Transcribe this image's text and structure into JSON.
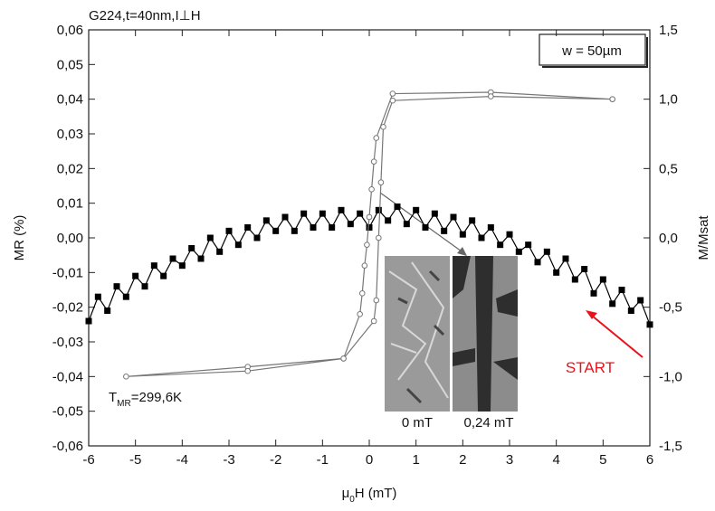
{
  "chart_data": {
    "type": "line",
    "title": "G224,t=40nm,I⊥H",
    "annotations": [
      "w = 50µm",
      "START"
    ],
    "temperature_label": {
      "main": "T",
      "sub": "MR",
      "rest": "=299,6K"
    },
    "image_labels": [
      "0 mT",
      "0,24 mT"
    ],
    "x_label": {
      "main": "μ",
      "sub": "0",
      "rest": "H (mT)"
    },
    "y_label": "MR (%)",
    "y2_label": "M/Msat",
    "xlim": [
      -6,
      6
    ],
    "xticks": [
      -6,
      -5,
      -4,
      -3,
      -2,
      -1,
      0,
      1,
      2,
      3,
      4,
      5,
      6
    ],
    "ylim": [
      -0.06,
      0.06
    ],
    "yticks": [
      {
        "value": -0.06,
        "label": "-0,06"
      },
      {
        "value": -0.05,
        "label": "-0,05"
      },
      {
        "value": -0.04,
        "label": "-0,04"
      },
      {
        "value": -0.03,
        "label": "-0,03"
      },
      {
        "value": -0.02,
        "label": "-0,02"
      },
      {
        "value": -0.01,
        "label": "-0,01"
      },
      {
        "value": 0,
        "label": "0,00"
      },
      {
        "value": 0.01,
        "label": "0,01"
      },
      {
        "value": 0.02,
        "label": "0,02"
      },
      {
        "value": 0.03,
        "label": "0,03"
      },
      {
        "value": 0.04,
        "label": "0,04"
      },
      {
        "value": 0.05,
        "label": "0,05"
      },
      {
        "value": 0.06,
        "label": "0,06"
      }
    ],
    "y2lim": [
      -1.5,
      1.5
    ],
    "y2ticks": [
      {
        "value": -1.5,
        "label": "-1,5"
      },
      {
        "value": -1,
        "label": "-1,0"
      },
      {
        "value": -0.5,
        "label": "-0,5"
      },
      {
        "value": 0,
        "label": "0,0"
      },
      {
        "value": 0.5,
        "label": "0,5"
      },
      {
        "value": 1,
        "label": "1,0"
      },
      {
        "value": 1.5,
        "label": "1,5"
      }
    ],
    "series": [
      {
        "color": "#000000",
        "marker": "square-filled",
        "x": [
          -6,
          -5.8,
          -5.6,
          -5.4,
          -5.2,
          -5,
          -4.8,
          -4.6,
          -4.4,
          -4.2,
          -4,
          -3.8,
          -3.6,
          -3.4,
          -3.2,
          -3,
          -2.8,
          -2.6,
          -2.4,
          -2.2,
          -2,
          -1.8,
          -1.6,
          -1.4,
          -1.2,
          -1,
          -0.8,
          -0.6,
          -0.4,
          -0.2,
          0,
          0.2,
          0.4,
          0.6,
          0.8,
          1,
          1.2,
          1.4,
          1.6,
          1.8,
          2,
          2.2,
          2.4,
          2.6,
          2.8,
          3,
          3.2,
          3.4,
          3.6,
          3.8,
          4,
          4.2,
          4.4,
          4.6,
          4.8,
          5,
          5.2,
          5.4,
          5.6,
          5.8,
          6
        ],
        "values": [
          -0.024,
          -0.017,
          -0.021,
          -0.014,
          -0.017,
          -0.011,
          -0.014,
          -0.008,
          -0.011,
          -0.006,
          -0.008,
          -0.003,
          -0.006,
          0,
          -0.004,
          0.002,
          -0.002,
          0.003,
          0,
          0.005,
          0.002,
          0.006,
          0.002,
          0.007,
          0.003,
          0.007,
          0.003,
          0.008,
          0.004,
          0.007,
          0.003,
          0.008,
          0.005,
          0.009,
          0.004,
          0.008,
          0.003,
          0.007,
          0.002,
          0.006,
          0.001,
          0.005,
          0,
          0.003,
          -0.002,
          0.001,
          -0.004,
          -0.002,
          -0.007,
          -0.004,
          -0.01,
          -0.006,
          -0.012,
          -0.009,
          -0.016,
          -0.012,
          -0.019,
          -0.015,
          -0.021,
          -0.018,
          -0.025
        ]
      },
      {
        "color": "#777777",
        "marker": "circle-open",
        "axis": "y2",
        "x": [
          5.2,
          2.6,
          0.5,
          0.15,
          0.1,
          0.05,
          0,
          -0.05,
          -0.1,
          -0.15,
          -0.2,
          -0.55,
          -2.6,
          -5.2,
          -2.6,
          -0.55,
          0.1,
          0.15,
          0.2,
          0.25,
          0.3,
          0.5,
          2.6,
          5.2
        ],
        "values": [
          1,
          1.05,
          1.04,
          0.72,
          0.55,
          0.35,
          0.15,
          -0.05,
          -0.2,
          -0.4,
          -0.55,
          -0.87,
          -0.93,
          -1,
          -0.96,
          -0.87,
          -0.6,
          -0.45,
          0,
          0.4,
          0.8,
          0.99,
          1.02,
          1
        ]
      }
    ]
  }
}
